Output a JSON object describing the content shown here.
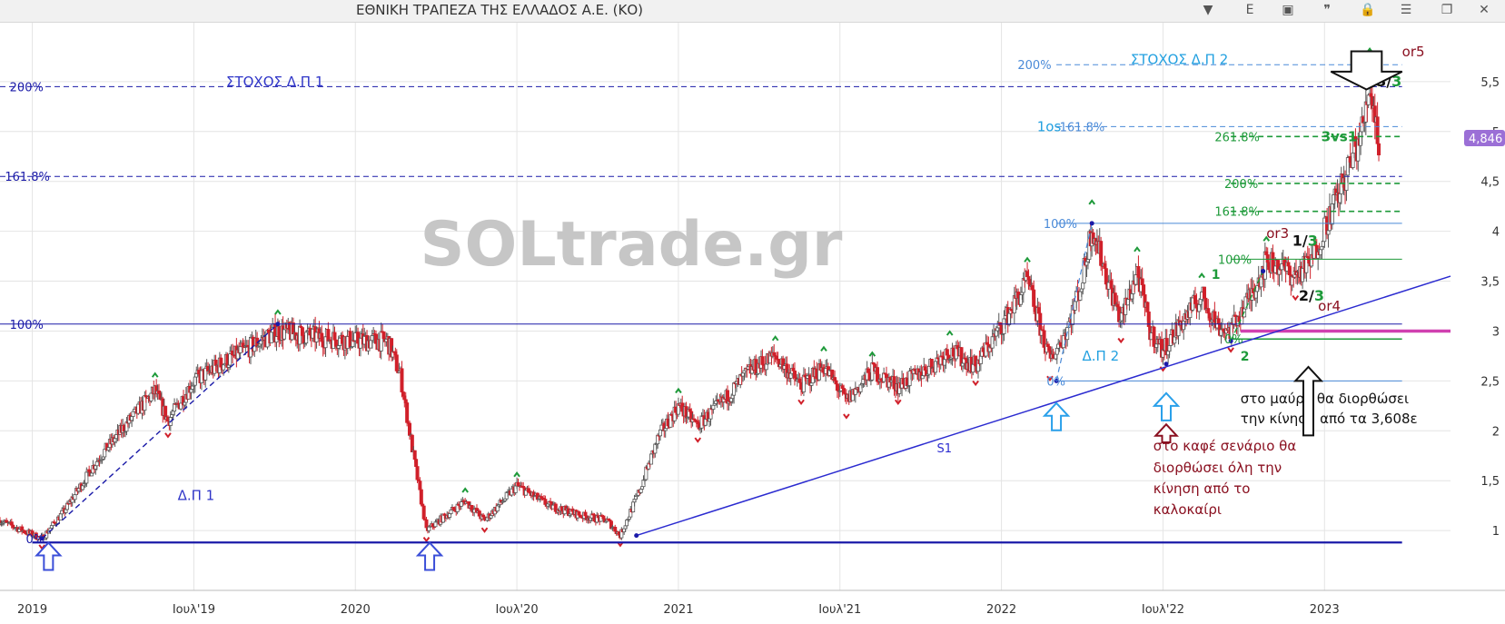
{
  "window": {
    "title": "ΕΘΝΙΚΗ ΤΡΑΠΕΖΑ ΤΗΣ ΕΛΛΑΔΟΣ Α.Ε. (ΚΟ)",
    "buttons": [
      {
        "name": "chevron-down-icon",
        "glyph": "▼"
      },
      {
        "name": "e-button",
        "glyph": "E"
      },
      {
        "name": "panel-icon",
        "glyph": "▣"
      },
      {
        "name": "quote-icon",
        "glyph": "❞"
      },
      {
        "name": "lock-icon",
        "glyph": "🔒"
      },
      {
        "name": "menu-icon",
        "glyph": "☰"
      },
      {
        "name": "restore-icon",
        "glyph": "❐"
      },
      {
        "name": "close-icon",
        "glyph": "✕"
      }
    ]
  },
  "chart_data": {
    "type": "candlestick",
    "watermark": "SOLtrade.gr",
    "y_ticks": [
      1,
      1.5,
      2,
      2.5,
      3,
      3.5,
      4,
      4.5,
      5,
      5.5
    ],
    "ylim": [
      0.4,
      6.1
    ],
    "x_ticks": [
      {
        "label": "2019",
        "t": 2019.0
      },
      {
        "label": "Ιουλ'19",
        "t": 2019.5
      },
      {
        "label": "2020",
        "t": 2020.0
      },
      {
        "label": "Ιουλ'20",
        "t": 2020.5
      },
      {
        "label": "2021",
        "t": 2021.0
      },
      {
        "label": "Ιουλ'21",
        "t": 2021.5
      },
      {
        "label": "2022",
        "t": 2022.0
      },
      {
        "label": "Ιουλ'22",
        "t": 2022.5
      },
      {
        "label": "2023",
        "t": 2023.0
      }
    ],
    "xlim": [
      2018.9,
      2023.39
    ],
    "last_price": "4,846",
    "price_path": [
      [
        2018.9,
        1.1
      ],
      [
        2018.97,
        1.0
      ],
      [
        2019.03,
        0.92
      ],
      [
        2019.1,
        1.2
      ],
      [
        2019.2,
        1.7
      ],
      [
        2019.3,
        2.1
      ],
      [
        2019.38,
        2.4
      ],
      [
        2019.42,
        2.1
      ],
      [
        2019.5,
        2.5
      ],
      [
        2019.6,
        2.7
      ],
      [
        2019.68,
        2.85
      ],
      [
        2019.76,
        3.0
      ],
      [
        2019.86,
        2.95
      ],
      [
        2020.0,
        2.9
      ],
      [
        2020.1,
        2.9
      ],
      [
        2020.14,
        2.55
      ],
      [
        2020.18,
        1.75
      ],
      [
        2020.22,
        1.0
      ],
      [
        2020.26,
        1.1
      ],
      [
        2020.34,
        1.3
      ],
      [
        2020.4,
        1.1
      ],
      [
        2020.5,
        1.45
      ],
      [
        2020.6,
        1.25
      ],
      [
        2020.7,
        1.15
      ],
      [
        2020.78,
        1.1
      ],
      [
        2020.82,
        0.95
      ],
      [
        2020.88,
        1.4
      ],
      [
        2020.94,
        1.95
      ],
      [
        2021.0,
        2.25
      ],
      [
        2021.06,
        2.05
      ],
      [
        2021.14,
        2.3
      ],
      [
        2021.22,
        2.6
      ],
      [
        2021.3,
        2.75
      ],
      [
        2021.38,
        2.45
      ],
      [
        2021.45,
        2.65
      ],
      [
        2021.52,
        2.3
      ],
      [
        2021.6,
        2.6
      ],
      [
        2021.68,
        2.45
      ],
      [
        2021.76,
        2.6
      ],
      [
        2021.84,
        2.8
      ],
      [
        2021.92,
        2.65
      ],
      [
        2022.0,
        3.05
      ],
      [
        2022.08,
        3.5
      ],
      [
        2022.15,
        2.7
      ],
      [
        2022.2,
        3.0
      ],
      [
        2022.25,
        3.5
      ],
      [
        2022.28,
        4.05
      ],
      [
        2022.33,
        3.5
      ],
      [
        2022.37,
        3.1
      ],
      [
        2022.42,
        3.6
      ],
      [
        2022.46,
        3.0
      ],
      [
        2022.5,
        2.8
      ],
      [
        2022.56,
        3.1
      ],
      [
        2022.62,
        3.35
      ],
      [
        2022.67,
        3.05
      ],
      [
        2022.71,
        3.0
      ],
      [
        2022.77,
        3.35
      ],
      [
        2022.82,
        3.7
      ],
      [
        2022.86,
        3.65
      ],
      [
        2022.91,
        3.55
      ],
      [
        2022.96,
        3.7
      ],
      [
        2023.02,
        4.2
      ],
      [
        2023.06,
        4.5
      ],
      [
        2023.12,
        5.05
      ],
      [
        2023.14,
        5.5
      ],
      [
        2023.17,
        4.85
      ]
    ],
    "candle_density": 0.004,
    "lines": [
      {
        "name": "trend-s1",
        "x1": 2020.87,
        "y1": 0.95,
        "x2": 2023.39,
        "y2": 3.55,
        "color": "#2b2bd0",
        "dash": false,
        "width": 1.5
      },
      {
        "name": "trend-dp1",
        "x1": 2019.03,
        "y1": 0.92,
        "x2": 2019.76,
        "y2": 3.07,
        "color": "#1a1aa8",
        "dash": true,
        "width": 1.4
      },
      {
        "name": "trend-dp2",
        "x1": 2022.17,
        "y1": 2.5,
        "x2": 2022.28,
        "y2": 4.08,
        "color": "#4a8ad8",
        "dash": true,
        "width": 1.2
      },
      {
        "name": "trend-green",
        "x1": 2022.71,
        "y1": 2.9,
        "x2": 2022.81,
        "y2": 3.6,
        "color": "#1e9a3a",
        "dash": true,
        "width": 1.4
      }
    ],
    "hlines": [
      {
        "name": "support-zero-dp1",
        "y": 0.88,
        "x1": 2019.0,
        "x2": 2023.24,
        "color": "#1a1aa8",
        "dash": false,
        "width": 2.2
      },
      {
        "name": "level-100-dp1",
        "y": 3.07,
        "x1": 2018.9,
        "x2": 2023.24,
        "color": "#1a1aa8",
        "dash": false,
        "width": 1
      },
      {
        "name": "level-161-dp1",
        "y": 4.55,
        "x1": 2018.9,
        "x2": 2023.24,
        "color": "#1a1aa8",
        "dash": true,
        "width": 1
      },
      {
        "name": "level-200-dp1",
        "y": 5.45,
        "x1": 2018.9,
        "x2": 2023.24,
        "color": "#1a1aa8",
        "dash": true,
        "width": 1
      },
      {
        "name": "level-0-dp2",
        "y": 2.5,
        "x1": 2022.17,
        "x2": 2023.24,
        "color": "#4a8ad8",
        "dash": false,
        "width": 1
      },
      {
        "name": "level-100-dp2",
        "y": 4.08,
        "x1": 2022.17,
        "x2": 2023.24,
        "color": "#4a8ad8",
        "dash": false,
        "width": 1
      },
      {
        "name": "level-161-dp2",
        "y": 5.05,
        "x1": 2022.17,
        "x2": 2023.24,
        "color": "#4a8ad8",
        "dash": true,
        "width": 1
      },
      {
        "name": "level-200-dp2",
        "y": 5.67,
        "x1": 2022.17,
        "x2": 2023.24,
        "color": "#4a8ad8",
        "dash": true,
        "width": 1
      },
      {
        "name": "level-0-green",
        "y": 2.92,
        "x1": 2022.71,
        "x2": 2023.24,
        "color": "#1e9a3a",
        "dash": false,
        "width": 1.4
      },
      {
        "name": "level-100-green",
        "y": 3.72,
        "x1": 2022.71,
        "x2": 2023.24,
        "color": "#1e9a3a",
        "dash": false,
        "width": 1
      },
      {
        "name": "level-161-green",
        "y": 4.2,
        "x1": 2022.71,
        "x2": 2023.24,
        "color": "#1e9a3a",
        "dash": true,
        "width": 1.6
      },
      {
        "name": "level-200-green",
        "y": 4.48,
        "x1": 2022.71,
        "x2": 2023.24,
        "color": "#1e9a3a",
        "dash": true,
        "width": 1.6
      },
      {
        "name": "level-261-green",
        "y": 4.95,
        "x1": 2022.71,
        "x2": 2023.24,
        "color": "#1e9a3a",
        "dash": true,
        "width": 1.6
      },
      {
        "name": "level-magenta",
        "y": 3.0,
        "x1": 2022.74,
        "x2": 2023.39,
        "color": "#d040b0",
        "dash": false,
        "width": 3.5
      }
    ],
    "texts": [
      {
        "text": "200%",
        "x": 2018.93,
        "y": 5.45,
        "color": "#1a1aa8",
        "size": 13
      },
      {
        "text": "161.8%",
        "x": 2018.915,
        "y": 4.55,
        "color": "#1a1aa8",
        "size": 13
      },
      {
        "text": "100%",
        "x": 2018.93,
        "y": 3.07,
        "color": "#1a1aa8",
        "size": 13
      },
      {
        "text": "0%",
        "x": 2018.98,
        "y": 0.92,
        "color": "#1a1aa8",
        "size": 13
      },
      {
        "text": "ΣΤΟΧΟΣ Δ.Π 1",
        "x": 2019.6,
        "y": 5.5,
        "color": "#2f35c8",
        "size": 15
      },
      {
        "text": "Δ.Π 1",
        "x": 2019.45,
        "y": 1.35,
        "color": "#2f35c8",
        "size": 15
      },
      {
        "text": "S1",
        "x": 2021.8,
        "y": 1.83,
        "color": "#2b2bd0",
        "size": 13
      },
      {
        "text": "ΣΤΟΧΟΣ Δ.Π 2",
        "x": 2022.4,
        "y": 5.72,
        "color": "#22a0e0",
        "size": 15
      },
      {
        "text": "200%",
        "x": 2022.05,
        "y": 5.67,
        "color": "#4a8ad8",
        "size": 13
      },
      {
        "text": "161.8%",
        "x": 2022.18,
        "y": 5.05,
        "color": "#4a8ad8",
        "size": 13
      },
      {
        "text": "1os",
        "x": 2022.11,
        "y": 5.05,
        "color": "#22a0e0",
        "size": 15
      },
      {
        "text": "100%",
        "x": 2022.13,
        "y": 4.08,
        "color": "#4a8ad8",
        "size": 13
      },
      {
        "text": "0%",
        "x": 2022.14,
        "y": 2.5,
        "color": "#4a8ad8",
        "size": 13
      },
      {
        "text": "Δ.Π 2",
        "x": 2022.25,
        "y": 2.75,
        "color": "#22a0e0",
        "size": 15
      },
      {
        "text": "261.8%",
        "x": 2022.66,
        "y": 4.95,
        "color": "#1e9a3a",
        "size": 13
      },
      {
        "text": "200%",
        "x": 2022.69,
        "y": 4.48,
        "color": "#1e9a3a",
        "size": 13
      },
      {
        "text": "161.8%",
        "x": 2022.66,
        "y": 4.2,
        "color": "#1e9a3a",
        "size": 13
      },
      {
        "text": "100%",
        "x": 2022.67,
        "y": 3.72,
        "color": "#1e9a3a",
        "size": 13
      },
      {
        "text": "0%",
        "x": 2022.69,
        "y": 2.92,
        "color": "#1e9a3a",
        "size": 13
      },
      {
        "text": "1",
        "x": 2022.65,
        "y": 3.57,
        "color": "#1e9a3a",
        "size": 14,
        "bold": true
      },
      {
        "text": "2",
        "x": 2022.74,
        "y": 2.75,
        "color": "#1e9a3a",
        "size": 14,
        "bold": true
      },
      {
        "text": "3vs1",
        "x": 2022.99,
        "y": 4.95,
        "color": "#1e9a3a",
        "size": 15,
        "bold": true
      },
      {
        "text": "or3",
        "x": 2022.82,
        "y": 3.98,
        "color": "#8a1020",
        "size": 15
      },
      {
        "text": "or4",
        "x": 2022.98,
        "y": 3.25,
        "color": "#8a1020",
        "size": 15
      },
      {
        "text": "or5",
        "x": 2023.24,
        "y": 5.8,
        "color": "#8a1020",
        "size": 15
      },
      {
        "text": "στο μαύρο θα διορθώσει",
        "x": 2022.74,
        "y": 2.32,
        "color": "#111111",
        "size": 15
      },
      {
        "text": "την κίνηση από τα 3,608ε",
        "x": 2022.74,
        "y": 2.12,
        "color": "#111111",
        "size": 15
      },
      {
        "text": "στο καφέ σενάριο θα",
        "x": 2022.47,
        "y": 1.85,
        "color": "#8a1020",
        "size": 15
      },
      {
        "text": "διορθώσει όλη την",
        "x": 2022.47,
        "y": 1.63,
        "color": "#8a1020",
        "size": 15
      },
      {
        "text": "κίνηση από το",
        "x": 2022.47,
        "y": 1.42,
        "color": "#8a1020",
        "size": 15
      },
      {
        "text": "καλοκαίρι",
        "x": 2022.47,
        "y": 1.21,
        "color": "#8a1020",
        "size": 15
      }
    ],
    "fractions": [
      {
        "num": "1",
        "den": "3",
        "x": 2022.9,
        "y": 3.9
      },
      {
        "num": "2",
        "den": "3",
        "x": 2022.92,
        "y": 3.35
      },
      {
        "num": "3",
        "den": "3",
        "x": 2023.16,
        "y": 5.5
      }
    ],
    "arrows": [
      {
        "name": "up-arrow-2019",
        "x": 2019.05,
        "y": 0.75,
        "dir": "up",
        "color": "#3b4fd8",
        "size": 1.0
      },
      {
        "name": "up-arrow-2020",
        "x": 2020.23,
        "y": 0.75,
        "dir": "up",
        "color": "#3b4fd8",
        "size": 1.0
      },
      {
        "name": "up-arrow-2022-a",
        "x": 2022.17,
        "y": 2.15,
        "dir": "up",
        "color": "#2aa0ea",
        "size": 1.0
      },
      {
        "name": "up-arrow-2022-b",
        "x": 2022.51,
        "y": 2.25,
        "dir": "up",
        "color": "#2aa0ea",
        "size": 1.0
      },
      {
        "name": "up-arrow-brown",
        "x": 2022.51,
        "y": 1.95,
        "dir": "up",
        "color": "#8a1020",
        "size": 0.9,
        "short": true
      },
      {
        "name": "up-arrow-black",
        "x": 2022.95,
        "y": 2.5,
        "dir": "up",
        "color": "#111111",
        "size": 1.1,
        "tall": true
      },
      {
        "name": "down-arrow-black",
        "x": 2023.13,
        "y": 5.6,
        "dir": "down",
        "color": "#111111",
        "size": 1.4
      }
    ]
  }
}
